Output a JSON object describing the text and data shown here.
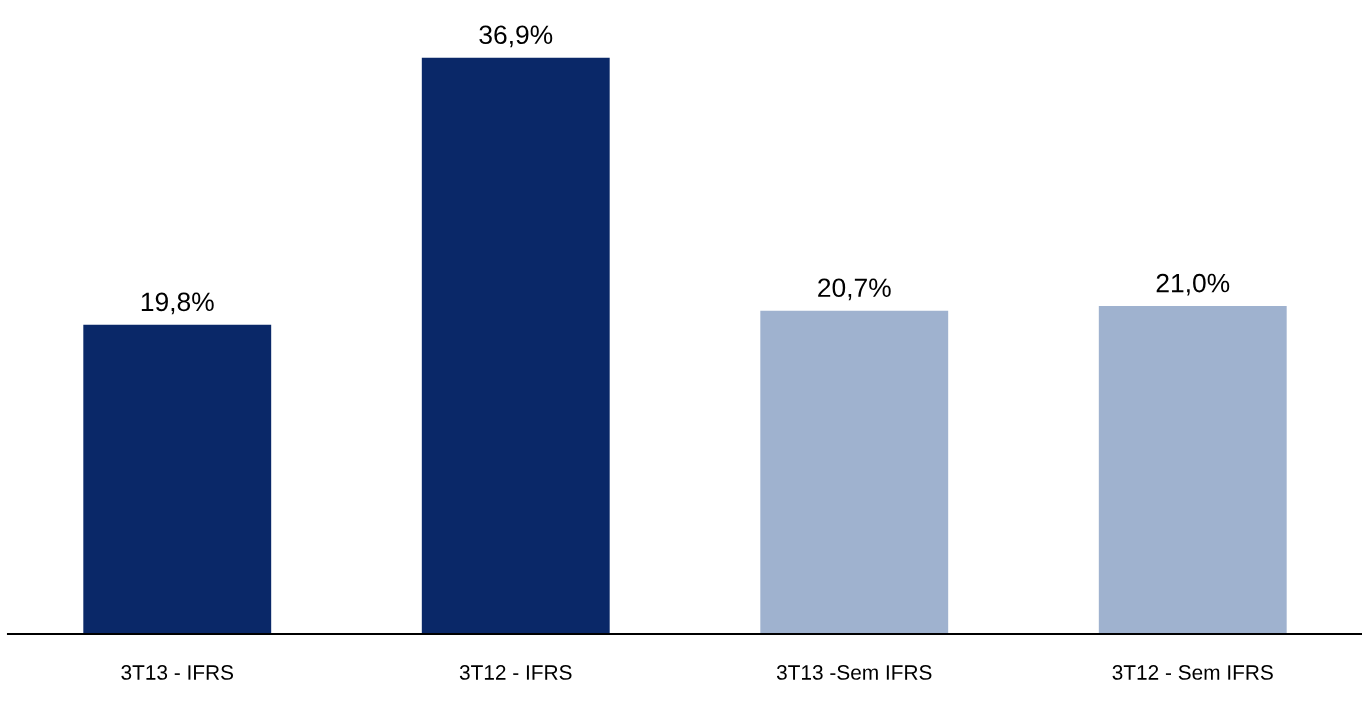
{
  "chart_data": {
    "type": "bar",
    "categories": [
      "3T13 - IFRS",
      "3T12 - IFRS",
      "3T13 -Sem IFRS",
      "3T12 - Sem IFRS"
    ],
    "values": [
      19.8,
      36.9,
      20.7,
      21.0
    ],
    "colors": [
      "#0a2868",
      "#0a2868",
      "#9fb2cf",
      "#9fb2cf"
    ],
    "value_labels": [
      "19,8%",
      "36,9%",
      "20,7%",
      "21,0%"
    ],
    "grid": false,
    "legend": false
  }
}
